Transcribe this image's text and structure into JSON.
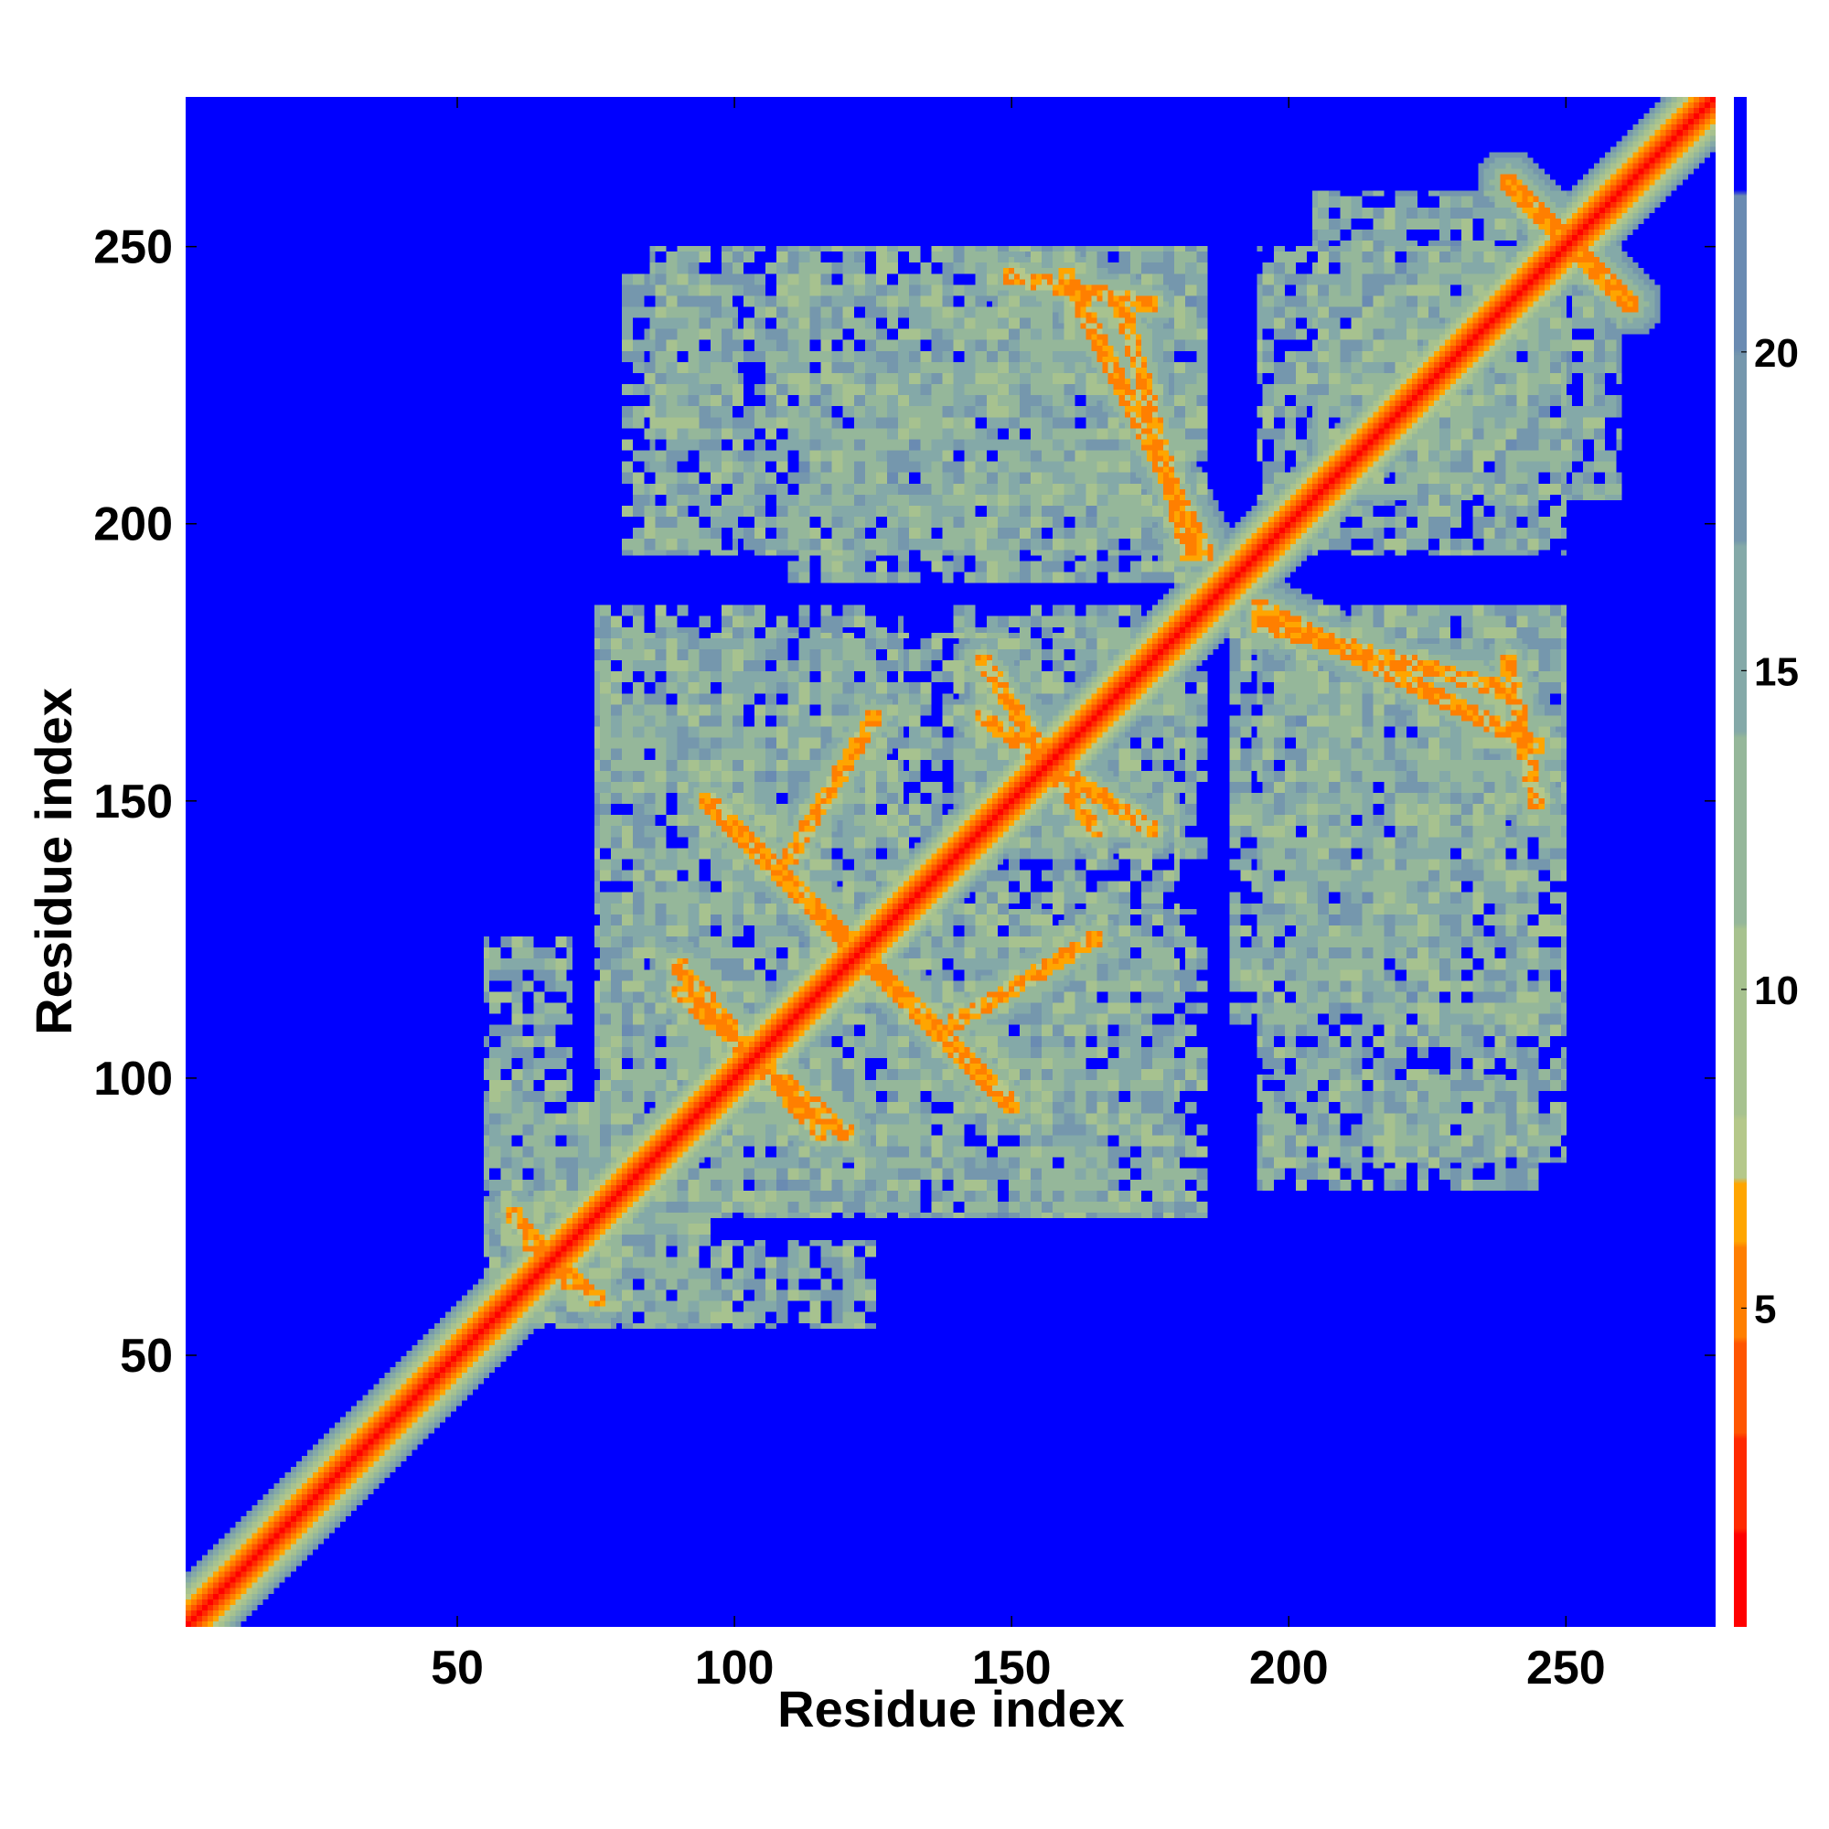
{
  "chart_data": {
    "type": "heatmap",
    "title": "",
    "xlabel": "Residue index",
    "ylabel": "Residue index",
    "xlim": [
      1,
      277
    ],
    "ylim": [
      1,
      277
    ],
    "x_ticks": [
      50,
      100,
      150,
      200,
      250
    ],
    "y_ticks": [
      50,
      100,
      150,
      200,
      250
    ],
    "x_tick_labels": [
      "50",
      "100",
      "150",
      "200",
      "250"
    ],
    "y_tick_labels": [
      "50",
      "100",
      "150",
      "200",
      "250"
    ],
    "grid": false,
    "values_description": "symmetric residue-residue distance map; diagonal band ~0-8, contact regions 8-20, background >22",
    "colorbar": {
      "range": [
        0,
        24
      ],
      "ticks": [
        5,
        10,
        15,
        20
      ],
      "tick_labels": [
        "5",
        "10",
        "15",
        "20"
      ],
      "bands": [
        {
          "max": 1.5,
          "color": "#ff0000"
        },
        {
          "max": 3.0,
          "color": "#ff2a00"
        },
        {
          "max": 4.5,
          "color": "#ff5500"
        },
        {
          "max": 6.0,
          "color": "#ff7f00"
        },
        {
          "max": 7.0,
          "color": "#ffa500"
        },
        {
          "max": 8.0,
          "color": "#b5c88a"
        },
        {
          "max": 11.0,
          "color": "#a7c28f"
        },
        {
          "max": 14.0,
          "color": "#95b79a"
        },
        {
          "max": 17.0,
          "color": "#84a9a8"
        },
        {
          "max": 20.0,
          "color": "#7597ad"
        },
        {
          "max": 22.5,
          "color": "#6a8bb2"
        },
        {
          "max": 24.0,
          "color": "#0000ff"
        }
      ]
    },
    "contact_regions": [
      {
        "x": [
          55,
          95
        ],
        "y": [
          55,
          95
        ]
      },
      {
        "x": [
          90,
          180
        ],
        "y": [
          75,
          130
        ]
      },
      {
        "x": [
          75,
          130
        ],
        "y": [
          90,
          185
        ]
      },
      {
        "x": [
          140,
          180
        ],
        "y": [
          120,
          185
        ]
      },
      {
        "x": [
          85,
          185
        ],
        "y": [
          195,
          250
        ]
      },
      {
        "x": [
          195,
          260
        ],
        "y": [
          205,
          250
        ]
      },
      {
        "x": [
          190,
          250
        ],
        "y": [
          140,
          185
        ]
      },
      {
        "x": [
          190,
          245
        ],
        "y": [
          110,
          145
        ]
      },
      {
        "x": [
          195,
          245
        ],
        "y": [
          80,
          100
        ]
      },
      {
        "x": [
          60,
          125
        ],
        "y": [
          55,
          70
        ]
      }
    ],
    "contact_lines": [
      {
        "from": [
          60,
          75
        ],
        "to": [
          70,
          63
        ]
      },
      {
        "from": [
          95,
          150
        ],
        "to": [
          130,
          115
        ]
      },
      {
        "from": [
          90,
          120
        ],
        "to": [
          115,
          90
        ]
      },
      {
        "from": [
          145,
          165
        ],
        "to": [
          175,
          145
        ]
      },
      {
        "from": [
          140,
          110
        ],
        "to": [
          165,
          125
        ]
      },
      {
        "from": [
          160,
          245
        ],
        "to": [
          185,
          195
        ]
      },
      {
        "from": [
          195,
          182
        ],
        "to": [
          240,
          170
        ]
      },
      {
        "from": [
          240,
          175
        ],
        "to": [
          245,
          150
        ]
      },
      {
        "from": [
          240,
          262
        ],
        "to": [
          262,
          240
        ]
      }
    ]
  }
}
